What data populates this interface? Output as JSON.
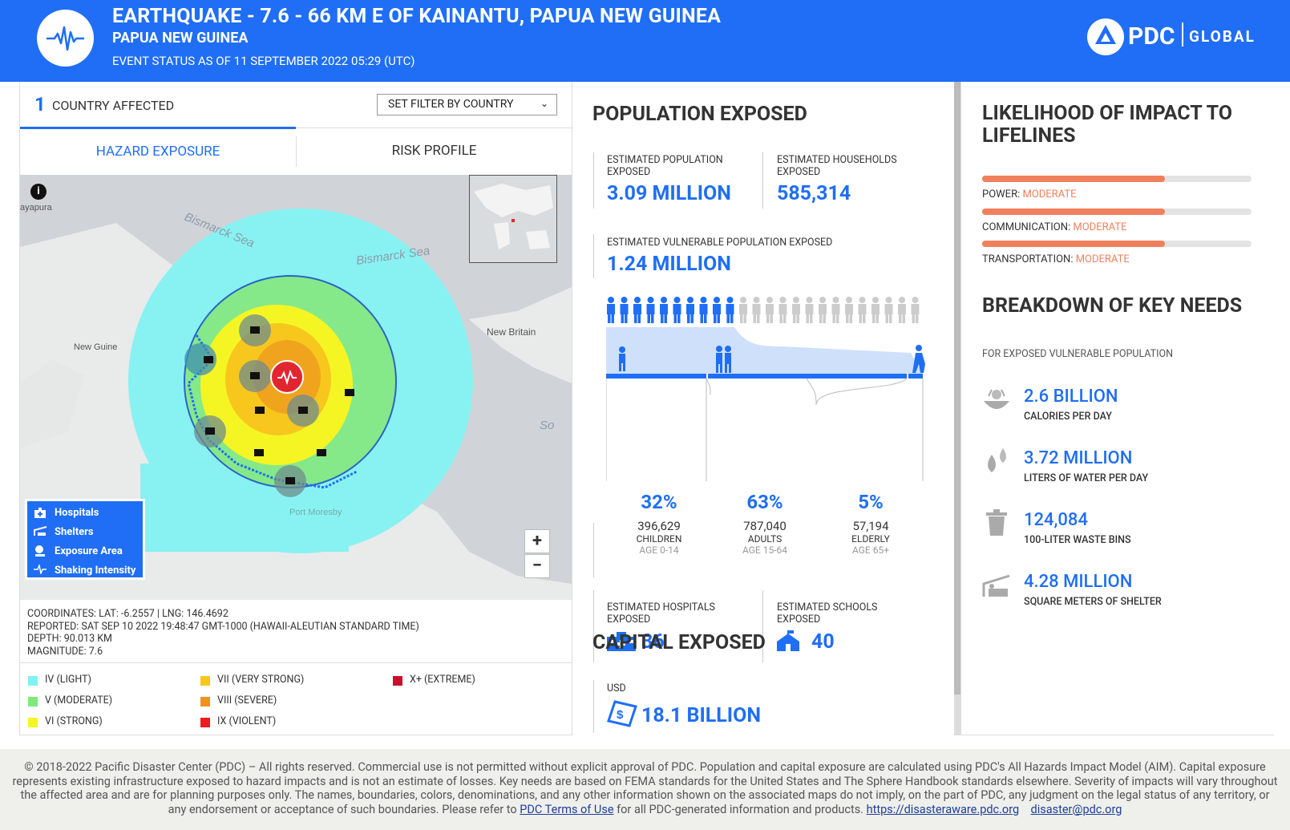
{
  "header": {
    "title": "EARTHQUAKE - 7.6 - 66 KM E OF KAINANTU, PAPUA NEW GUINEA",
    "subtitle": "PAPUA NEW GUINEA",
    "status": "EVENT STATUS AS OF 11 SEPTEMBER 2022 05:29 (UTC)",
    "brand": "PDC",
    "brand_sub": "GLOBAL",
    "color": "#1f6ef5"
  },
  "left": {
    "country_count": "1",
    "country_label": "COUNTRY AFFECTED",
    "filter_label": "SET FILTER BY COUNTRY",
    "tabs": [
      "HAZARD EXPOSURE",
      "RISK PROFILE"
    ],
    "map_labels": {
      "city": "ayapura",
      "sea1": "Bismarck Sea",
      "sea2": "Bismarck Sea",
      "island": "New Britain",
      "ng": "New Guine",
      "so": "So",
      "pm": "Port Moresby"
    },
    "map_legend": [
      "Hospitals",
      "Shelters",
      "Exposure Area",
      "Shaking Intensity"
    ],
    "zoom_in": "+",
    "zoom_out": "−",
    "coordinates": "COORDINATES: LAT: -6.2557 | LNG: 146.4692",
    "reported": "REPORTED: SAT SEP 10 2022 19:48:47 GMT-1000 (HAWAII-ALEUTIAN STANDARD TIME)",
    "depth": "DEPTH: 90.013 KM",
    "magnitude": "MAGNITUDE: 7.6",
    "intensity_scale": [
      {
        "label": "IV (LIGHT)",
        "color": "#7ff3f3"
      },
      {
        "label": "V (MODERATE)",
        "color": "#7de87b"
      },
      {
        "label": "VI (STRONG)",
        "color": "#f5f524"
      },
      {
        "label": "VII (VERY STRONG)",
        "color": "#f7c71d"
      },
      {
        "label": "VIII (SEVERE)",
        "color": "#f0921e"
      },
      {
        "label": "IX (VIOLENT)",
        "color": "#ee1c1c"
      },
      {
        "label": "X+ (EXTREME)",
        "color": "#c8102e"
      }
    ]
  },
  "mid": {
    "pop_title": "POPULATION EXPOSED",
    "est_pop_label": "ESTIMATED POPULATION EXPOSED",
    "est_pop_value": "3.09 MILLION",
    "est_hh_label": "ESTIMATED HOUSEHOLDS EXPOSED",
    "est_hh_value": "585,314",
    "vuln_label": "ESTIMATED VULNERABLE POPULATION EXPOSED",
    "vuln_value": "1.24 MILLION",
    "groups": [
      {
        "pct": "32%",
        "count": "396,629",
        "name": "CHILDREN",
        "age": "AGE 0-14"
      },
      {
        "pct": "63%",
        "count": "787,040",
        "name": "ADULTS",
        "age": "AGE 15-64"
      },
      {
        "pct": "5%",
        "count": "57,194",
        "name": "ELDERLY",
        "age": "AGE 65+"
      }
    ],
    "hosp_label": "ESTIMATED HOSPITALS EXPOSED",
    "hosp_value": "36",
    "school_label": "ESTIMATED SCHOOLS EXPOSED",
    "school_value": "40",
    "cap_title": "CAPITAL EXPOSED",
    "cap_unit": "USD",
    "cap_value": "18.1 BILLION"
  },
  "right": {
    "life_title": "LIKELIHOOD OF IMPACT TO LIFELINES",
    "lifelines": [
      {
        "name": "POWER:",
        "level": "MODERATE",
        "fill": 0.68
      },
      {
        "name": "COMMUNICATION:",
        "level": "MODERATE",
        "fill": 0.68
      },
      {
        "name": "TRANSPORTATION:",
        "level": "MODERATE",
        "fill": 0.68
      }
    ],
    "needs_title": "BREAKDOWN OF KEY NEEDS",
    "needs_sub": "FOR EXPOSED VULNERABLE POPULATION",
    "needs": [
      {
        "value": "2.6 BILLION",
        "label": "CALORIES PER DAY",
        "icon": "food-bowl-icon"
      },
      {
        "value": "3.72 MILLION",
        "label": "LITERS OF WATER PER DAY",
        "icon": "water-drops-icon"
      },
      {
        "value": "124,084",
        "label": "100-LITER WASTE BINS",
        "icon": "trash-bin-icon"
      },
      {
        "value": "4.28 MILLION",
        "label": "SQUARE METERS OF SHELTER",
        "icon": "shelter-icon"
      }
    ]
  },
  "footer": {
    "text1": "© 2018-2022 Pacific Disaster Center (PDC) – All rights reserved. Commercial use is not permitted without explicit approval of PDC. Population and capital exposure are calculated using PDC's All Hazards Impact Model (AIM). Capital exposure represents existing infrastructure exposed to hazard impacts and is not an estimate of losses. Key needs are based on FEMA standards for the United States and The Sphere Handbook standards elsewhere. Severity of impacts will vary throughout the affected area and are for planning purposes only. The names, boundaries, colors, denominations, and any other information shown on the associated maps do not imply, on the part of PDC, any judgment on the legal status of any territory, or any endorsement or acceptance of such boundaries. Please refer to",
    "terms_link": "PDC Terms of Use",
    "text2": "for all PDC-generated information and products.",
    "site_link": "https://disasteraware.pdc.org",
    "email_link": "disaster@pdc.org"
  }
}
